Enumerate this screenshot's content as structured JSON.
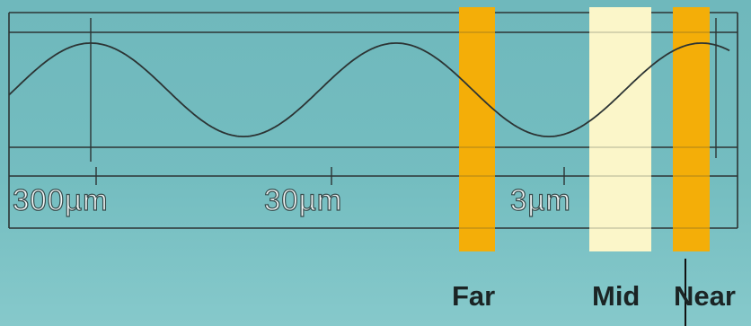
{
  "scale": {
    "ticks": [
      "300µm",
      "30µm",
      "3µm"
    ]
  },
  "bands": [
    {
      "label": "Far",
      "color": "#f4ae08"
    },
    {
      "label": "Mid",
      "color": "#fbf6c9"
    },
    {
      "label": "Near",
      "color": "#f4ae08"
    }
  ],
  "colors": {
    "background": "#74bdc0",
    "line": "#2c3434",
    "wave": "#2c3434"
  }
}
